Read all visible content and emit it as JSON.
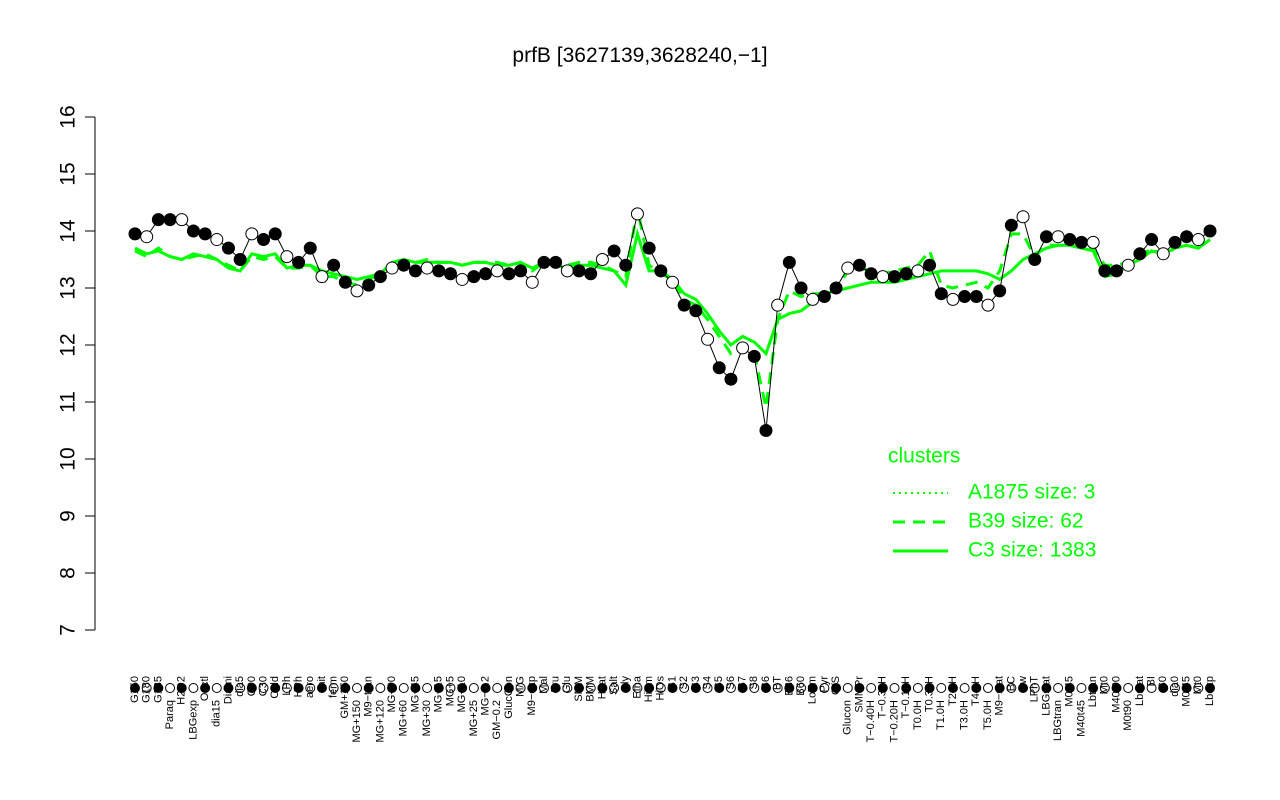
{
  "chart_data": {
    "type": "line",
    "title": "prfB [3627139,3628240,−1]",
    "xlabel": "",
    "ylabel": "",
    "ylim": [
      7,
      16
    ],
    "yticks": [
      7,
      8,
      9,
      10,
      11,
      12,
      13,
      14,
      15,
      16
    ],
    "grid": false,
    "legend": {
      "title": "clusters",
      "placement": "right",
      "entries": [
        "A1875 size: 3",
        "B39 size: 62",
        "C3 size: 1383"
      ],
      "color": "#00ff00"
    },
    "tick_labels": [
      "G150",
      "G180",
      "G135",
      "Paraq",
      "H2O2",
      "LBGexp",
      "Oxctl",
      "dia15",
      "Diami",
      "dia5",
      "C90",
      "C30",
      "Cold",
      "LPh",
      "HPh",
      "aero",
      "nit",
      "ferm",
      "GM+150",
      "MG+150",
      "M9−tran",
      "MG+120",
      "MG+90",
      "MG+60",
      "MG+45",
      "MG+30",
      "MG+15",
      "MG+5",
      "MG+10",
      "MG+25",
      "MG−0.2",
      "GM−0.2",
      "GlucCon",
      "M/G",
      "M9−exp",
      "Mal",
      "Fru",
      "Glu",
      "SMM",
      "BMM",
      "Heat",
      "Salt",
      "Gly",
      "Etha",
      "HiTm",
      "HiOs",
      "S1",
      "S2",
      "S3",
      "S4",
      "S5",
      "S6",
      "S7",
      "S8",
      "S6",
      "BT",
      "B36",
      "B60",
      "LoTm",
      "Pyr",
      "G/S",
      "Glucon",
      "SMMPr",
      "T−0.40H",
      "T−0.30H",
      "T−0.20H",
      "T−0.10H",
      "T0.0H",
      "T0.30H",
      "T1.0H",
      "T2.0H",
      "T3.0H",
      "T4.0H",
      "T5.0H",
      "M9−stat",
      "BC",
      "Sw",
      "LPhT",
      "LBGstat",
      "LBGtran",
      "M0t45",
      "M40t45",
      "Lbtran",
      "Mt0",
      "M40t90",
      "M0t90",
      "Lbstat",
      "BI",
      "S0",
      "dia0",
      "M0t45",
      "Mt0",
      "Lbexp"
    ],
    "marker_style": "black filled / white open circles",
    "x": [
      1,
      2,
      3,
      4,
      5,
      6,
      7,
      8,
      9,
      10,
      11,
      12,
      13,
      14,
      15,
      16,
      17,
      18,
      19,
      20,
      21,
      22,
      23,
      24,
      25,
      26,
      27,
      28,
      29,
      30,
      31,
      32,
      33,
      34,
      35,
      36,
      37,
      38,
      39,
      40,
      41,
      42,
      43,
      44,
      45,
      46,
      47,
      48,
      49,
      50,
      51,
      52,
      53,
      54,
      55,
      56,
      57,
      58,
      59,
      60,
      61,
      62,
      63,
      64,
      65,
      66,
      67,
      68,
      69,
      70,
      71,
      72,
      73,
      74,
      75,
      76,
      77,
      78,
      79,
      80,
      81,
      82,
      83,
      84,
      85,
      86,
      87,
      88,
      89,
      90,
      91,
      92,
      93
    ],
    "series": [
      {
        "name": "",
        "values": [
          13.95,
          13.9,
          14.2,
          14.2,
          14.2,
          14.0,
          13.95,
          13.85,
          13.7,
          13.5,
          13.95,
          13.85,
          13.95,
          13.55,
          13.45,
          13.7,
          13.2,
          13.4,
          13.1,
          12.95,
          13.05,
          13.2,
          13.35,
          13.4,
          13.3,
          13.35,
          13.3,
          13.25,
          13.15,
          13.2,
          13.25,
          13.3,
          13.25,
          13.3,
          13.1,
          13.45,
          13.45,
          13.3,
          13.3,
          13.25,
          13.5,
          13.65,
          13.4,
          14.3,
          13.7,
          13.3,
          13.1,
          12.7,
          12.6,
          12.1,
          11.6,
          11.4,
          11.95,
          11.8,
          10.5,
          12.7,
          13.45,
          13.0,
          12.8,
          12.85,
          13.0,
          13.35,
          13.4,
          13.25,
          13.2,
          13.2,
          13.25,
          13.3,
          13.4,
          12.9,
          12.8,
          12.85,
          12.85,
          12.7,
          12.95,
          14.1,
          14.25,
          13.5,
          13.9,
          13.9,
          13.85,
          13.8,
          13.8,
          13.3,
          13.3,
          13.4,
          13.6,
          13.85,
          13.6,
          13.8,
          13.9,
          13.85,
          14.0
        ]
      },
      {
        "name": "",
        "values": [
          13.65,
          13.55,
          13.7,
          13.55,
          13.5,
          13.55,
          13.6,
          13.5,
          13.4,
          13.3,
          13.55,
          13.5,
          13.55,
          13.35,
          13.35,
          13.4,
          13.2,
          13.2,
          13.1,
          13.05,
          13.15,
          13.25,
          13.45,
          13.5,
          13.45,
          13.5,
          13.45,
          13.45,
          13.4,
          13.45,
          13.45,
          13.45,
          13.4,
          13.45,
          13.3,
          13.45,
          13.45,
          13.4,
          13.45,
          13.45,
          13.4,
          13.3,
          13.2,
          14.4,
          13.4,
          13.25,
          13.15,
          12.8,
          12.7,
          12.45,
          12.15,
          11.85,
          12.0,
          11.85,
          10.9,
          12.45,
          12.95,
          12.85,
          12.9,
          12.9,
          12.95,
          13.3,
          13.35,
          13.3,
          13.25,
          13.3,
          13.35,
          13.4,
          13.65,
          13.05,
          13.0,
          13.05,
          13.1,
          13.0,
          13.3,
          13.95,
          13.95,
          13.55,
          13.75,
          13.75,
          13.75,
          13.7,
          13.7,
          13.4,
          13.4,
          13.45,
          13.55,
          13.7,
          13.55,
          13.7,
          13.75,
          13.7,
          13.85
        ]
      },
      {
        "name": "",
        "values": [
          13.7,
          13.6,
          13.65,
          13.55,
          13.5,
          13.6,
          13.55,
          13.5,
          13.35,
          13.3,
          13.6,
          13.55,
          13.6,
          13.35,
          13.4,
          13.4,
          13.3,
          13.25,
          13.2,
          13.15,
          13.2,
          13.25,
          13.45,
          13.5,
          13.45,
          13.45,
          13.45,
          13.45,
          13.4,
          13.45,
          13.45,
          13.4,
          13.4,
          13.45,
          13.35,
          13.45,
          13.4,
          13.35,
          13.4,
          13.4,
          13.35,
          13.3,
          13.05,
          13.95,
          13.3,
          13.3,
          13.15,
          12.9,
          12.8,
          12.55,
          12.25,
          12.0,
          12.15,
          12.05,
          11.85,
          12.45,
          12.55,
          12.6,
          12.75,
          12.9,
          12.95,
          13.0,
          13.05,
          13.1,
          13.1,
          13.1,
          13.15,
          13.2,
          13.25,
          13.3,
          13.3,
          13.3,
          13.3,
          13.25,
          13.15,
          13.3,
          13.5,
          13.6,
          13.7,
          13.75,
          13.75,
          13.7,
          13.65,
          13.2,
          13.25,
          13.4,
          13.5,
          13.65,
          13.6,
          13.7,
          13.75,
          13.7,
          13.85
        ]
      }
    ]
  }
}
